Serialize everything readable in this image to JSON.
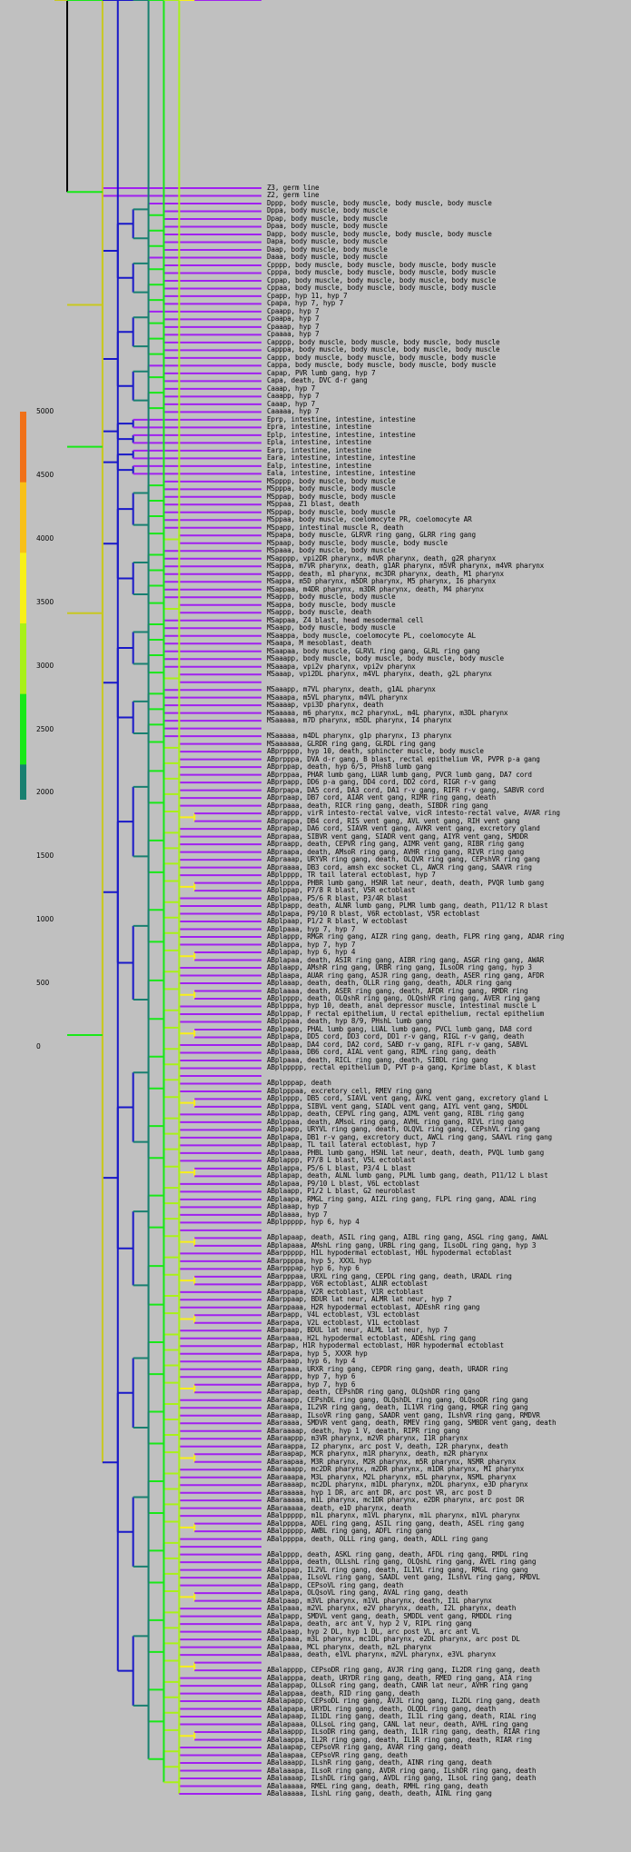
{
  "legend": {
    "ticks": [
      "5000",
      "4500",
      "4000",
      "3500",
      "3000",
      "2500",
      "2000",
      "1500",
      "1000",
      "500",
      "0"
    ],
    "colors": [
      "#f07018",
      "#f8c018",
      "#f8f018",
      "#a8f018",
      "#18e818",
      "#188070",
      "#1818f0",
      "#7818f0",
      "#c018f0"
    ]
  },
  "leaves": [
    "Z3, germ line",
    "Z2, germ line",
    "Dppp, body muscle, body muscle, body muscle, body muscle",
    "Dppa, body muscle, body muscle",
    "Dpap, body muscle, body muscle",
    "Dpaa, body muscle, body muscle",
    "Dapp, body muscle, body muscle, body muscle, body muscle",
    "Dapa, body muscle, body muscle",
    "Daap, body muscle, body muscle",
    "Daaa, body muscle, body muscle",
    "Cpppp, body muscle, body muscle, body muscle, body muscle",
    "Cpppa, body muscle, body muscle, body muscle, body muscle",
    "Cppap, body muscle, body muscle, body muscle, body muscle",
    "Cppaa, body muscle, body muscle, body muscle, body muscle",
    "Cpapp, hyp 11, hyp 7",
    "Cpapa, hyp 7, hyp 7",
    "Cpaapp, hyp 7",
    "Cpaapa, hyp 7",
    "Cpaaap, hyp 7",
    "Cpaaaa, hyp 7",
    "Capppp, body muscle, body muscle, body muscle, body muscle",
    "Capppa, body muscle, body muscle, body muscle, body muscle",
    "Cappp, body muscle, body muscle, body muscle, body muscle",
    "Cappa, body muscle, body muscle, body muscle, body muscle",
    "Capap, PVR lumb gang, hyp 7",
    "Capa, death, DVC d-r gang",
    "Caaap, hyp 7",
    "Caaapp, hyp 7",
    "Caaap, hyp 7",
    "Caaaaa, hyp 7",
    "Eprp, intestine, intestine, intestine",
    "Epra, intestine, intestine",
    "Eplp, intestine, intestine, intestine",
    "Epla, intestine, intestine",
    "Earp, intestine, intestine",
    "Eara, intestine, intestine, intestine",
    "Ealp, intestine, intestine",
    "Eala, intestine, intestine, intestine",
    "MSpppp, body muscle, body muscle",
    "MSpppa, body muscle, body muscle",
    "MSppap, body muscle, body muscle",
    "MSppaa, Z1 blast, death",
    "MSppap, body muscle, body muscle",
    "MSppaa, body muscle, coelomocyte PR, coelomocyte AR",
    "MSpapp, intestinal muscle R, death",
    "MSpapa, body muscle, GLRVR ring gang, GLRR ring gang",
    "MSpaap, body muscle, body muscle, body muscle",
    "MSpaaa, body muscle, body muscle",
    "MSapppp, vpi2DR pharynx, m4VR pharynx, death, g2R pharynx",
    "MSappa, m7VR pharynx, death, g1AR pharynx, m5VR pharynx, m4VR pharynx",
    "MSappp, death, m1 pharynx, mc3DR pharynx, death, M1 pharynx",
    "MSappa, m5D pharynx, m5DR pharynx, M5 pharynx, I6 pharynx",
    "MSappaa, m4DR pharynx, m3DR pharynx, death, M4 pharynx",
    "MSappp, body muscle, body muscle",
    "MSappa, body muscle, body muscle",
    "MSappp, body muscle, death",
    "MSappaa, Z4 blast, head mesodermal cell",
    "MSaapp, body muscle, body muscle",
    "MSaappa, body muscle, coelomocyte PL, coelomocyte AL",
    "MSaapa, M mesoblast, death",
    "MSaapaa, body muscle, GLRVL ring gang, GLRL ring gang",
    "MSaaapp, body muscle, body muscle, body muscle, body muscle",
    "MSaaapa, vpi2v pharynx, vpi2v pharynx",
    "MSaaap, vpi2DL pharynx, m4VL pharynx, death, g2L pharynx",
    "",
    "MSaaapp, m7VL pharynx, death, g1AL pharynx",
    "MSaaapa, m5VL pharynx, m4VL pharynx",
    "MSaaaap, vpi3D pharynx, death",
    "MSaaaaa, m6 pharynx, mc2 pharynxL, m4L pharynx, m3DL pharynx",
    "MSaaaaa, m7D pharynx, m5DL pharynx, I4 pharynx",
    "",
    "MSaaaaa, m4DL pharynx, g1p pharynx, I3 pharynx",
    "MSaaaaaa, GLRDR ring gang, GLRDL ring gang",
    "ABprpppp, hyp 10, death, sphincter muscle, body muscle",
    "ABprpppa, DVA d-r gang, B blast, rectal epithelium VR, PVPR p-a gang",
    "ABprppap, death, hyp 6/5, PHsh8 lumb gang",
    "ABprppaa, PHAR lumb gang, LUAR lumb gang, PVCR lumb gang, DA7 cord",
    "ABprpapp, DD6 p-a gang, DD4 cord, DD2 cord, RIGR r-v gang",
    "ABprpapa, DA5 cord, DA3 cord, DA1 r-v gang, RIFR r-v gang, SABVR cord",
    "ABprpaap, DB7 cord, AIAR vent gang, RIMR ring gang, death",
    "ABprpaaa, death, RICR ring gang, death, SIBDR ring gang",
    "ABprappp, virR intesto-rectal valve, vicR intesto-rectal valve, AVAR ring",
    "ABprappa, DB4 cord, RIS vent gang, AVL vent gang, RIH vent gang",
    "ABprapap, DA6 cord, SIAVR vent gang, AVKR vent gang, excretory gland",
    "ABprapaa, SIBVR vent gang, SIADR vent gang, AIYR vent gang, SMDDR",
    "ABpraapp, death, CEPVR ring gang, AIMR vent gang, RIBR ring gang",
    "ABpraapa, death, AMsoR ring gang, AVHR ring gang, RIVR ring gang",
    "ABpraaap, URYVR ring gang, death, OLQVR ring gang, CEPshVR ring gang",
    "ABpraaaa, DB3 cord, amsh exc socket CL, AWCR ring gang, SAAVR ring",
    "ABplpppp, TR tail lateral ectoblast, hyp 7",
    "ABplpppa, PHBR lumb gang, HSNR lat neur, death, death, PVQR lumb gang",
    "ABplppap, P7/8 R blast, V5R ectoblast",
    "ABplppaa, P5/6 R blast, P3/4R blast",
    "ABplpapp, death, ALNR lumb gang, PLMR lumb gang, death, P11/12 R blast",
    "ABplpapa, P9/10 R blast, V6R ectoblast, V5R ectoblast",
    "ABplpaap, P1/2 R blast, W ectoblast",
    "ABplpaaa, hyp 7, hyp 7",
    "ABplappp, RMGR ring gang, AIZR ring gang, death, FLPR ring gang, ADAR ring",
    "ABplappa, hyp 7, hyp 7",
    "ABplapap, hyp 6, hyp 4",
    "ABplapaa, death, ASIR ring gang, AIBR ring gang, ASGR ring gang, AWAR",
    "ABplaapp, AMshR ring gang, URBR ring gang, ILsoDR ring gang, hyp 3",
    "ABplaapa, AUAR ring gang, ASJR ring gang, death, ASER ring gang, AFDR",
    "ABplaaap, death, death, OLLR ring gang, death, ADLR ring gang",
    "ABplaaaa, death, ASER ring gang, death, AFDR ring gang, RMDR ring",
    "ABplpppp, death, OLQshR ring gang, OLQshVR ring gang, AVER ring gang",
    "ABplpppa, hyp 10, death, anal depressor muscle, intestinal muscle L",
    "ABplppap, F rectal epithelium, U rectal epithelium, rectal epithelium",
    "ABplppaa, death, hyp 8/9, PHshL lumb gang",
    "ABplpapp, PHAL lumb gang, LUAL lumb gang, PVCL lumb gang, DA8 cord",
    "ABplpapa, DD5 cord, DD3 cord, DD1 r-v gang, RIGL r-v gang, death",
    "ABplpaap, DA4 cord, DA2 cord, SABD r-v gang, RIFL r-v gang, SABVL",
    "ABplpaaa, DB6 cord, AIAL vent gang, RIML ring gang, death",
    "ABplpaaa, death, RICL ring gang, death, SIBDL ring gang",
    "ABplppppp, rectal epithelium D, PVT p-a gang, Kprime blast, K blast",
    "",
    "ABplpppap, death",
    "ABplpppaa, excretory cell, RMEV ring gang",
    "ABplpppp, DB5 cord, SIAVL vent gang, AVKL vent gang, excretory gland L",
    "ABplpppa, SIBVL vent gang, SIADL vent gang, AIYL vent gang, SMDDL",
    "ABplppap, death, CEPVL ring gang, AIML vent gang, RIBL ring gang",
    "ABplppaa, death, AMsoL ring gang, AVHL ring gang, RIVL ring gang",
    "ABplpapp, URYVL ring gang, death, OLQVL ring gang, CEPshVL ring gang",
    "ABplpapa, DB1 r-v gang, excretory duct, AWCL ring gang, SAAVL ring gang",
    "ABplpaap, TL tail lateral ectoblast, hyp 7",
    "ABplpaaa, PHBL lumb gang, HSNL lat neur, death, death, PVQL lumb gang",
    "ABplappp, P7/8 L blast, V5L ectoblast",
    "ABplappa, P5/6 L blast, P3/4 L blast",
    "ABplapap, death, ALNL lumb gang, PLML lumb gang, death, P11/12 L blast",
    "ABplapaa, P9/10 L blast, V6L ectoblast",
    "ABplaapp, P1/2 L blast, G2 neuroblast",
    "ABplaapa, RMGL ring gang, AIZL ring gang, FLPL ring gang, ADAL ring",
    "ABplaaap, hyp 7",
    "ABplaaaa, hyp 7",
    "ABplppppp, hyp 6, hyp 4",
    "",
    "ABplapaap, death, ASIL ring gang, AIBL ring gang, ASGL ring gang, AWAL",
    "ABplapaaa, AMshL ring gang, URBL ring gang, ILsoDL ring gang, hyp 3",
    "ABarppppp, H1L hypodermal ectoblast, H0L hypodermal ectoblast",
    "ABarppppa, hyp 5, XXXL hyp",
    "ABarpppap, hyp 6, hyp 6",
    "ABarpppaa, URXL ring gang, CEPDL ring gang, death, URADL ring",
    "ABarppapp, V6R ectoblast, ALNR ectoblast",
    "ABarppapa, V2R ectoblast, V1R ectoblast",
    "ABarppaap, BDUR lat neur, ALMR lat neur, hyp 7",
    "ABarppaaa, H2R hypodermal ectoblast, ADEshR ring gang",
    "ABarpapp, V4L ectoblast, V3L ectoblast",
    "ABarpapa, V2L ectoblast, V1L ectoblast",
    "ABarpaap, BDUL lat neur, ALML lat neur, hyp 7",
    "ABarpaaa, H2L hypodermal ectoblast, ADEshL ring gang",
    "ABarpap, H1R hypodermal ectoblast, H0R hypodermal ectoblast",
    "ABarpapa, hyp 5, XXXR hyp",
    "ABarpaap, hyp 6, hyp 4",
    "ABarpaaa, URXR ring gang, CEPDR ring gang, death, URADR ring",
    "ABarappp, hyp 7, hyp 6",
    "ABarappa, hyp 7, hyp 6",
    "ABarapap, death, CEPshDR ring gang, OLQshDR ring gang",
    "ABaraapp, CEPshDL ring gang, OLQshDL ring gang, OLQsoDR ring gang",
    "ABaraapa, IL2VR ring gang, death, IL1VR ring gang, RMGR ring gang",
    "ABaraaap, ILsoVR ring gang, SAADR vent gang, ILshVR ring gang, RMDVR",
    "ABaraaaa, SMDVR vent gang, death, RMEV ring gang, SMBDR vent gang, death",
    "ABaraaaap, death, hyp 1 V, death, RIPR ring gang",
    "ABaraappp, m3VR pharynx, m2VR pharynx, I1R pharynx",
    "ABaraappa, I2 pharynx, arc post V, death, I2R pharynx, death",
    "ABaraapap, MCR pharynx, m1R pharynx, death, m2R pharynx",
    "ABaraapaa, M3R pharynx, M2R pharynx, m5R pharynx, NSMR pharynx",
    "ABaraaapp, mc2DR pharynx, m2DR pharynx, m1DR pharynx, MI pharynx",
    "ABaraaapa, M3L pharynx, M2L pharynx, m5L pharynx, NSML pharynx",
    "ABaraaaap, mc2DL pharynx, m1DL pharynx, m2DL pharynx, e3D pharynx",
    "ABaraaaaa, hyp 1 DR, arc ant DR, arc post VR, arc post D",
    "ABaraaaaa, m1L pharynx, mc1DR pharynx, e2DR pharynx, arc post DR",
    "ABaraaaaa, death, e1D pharynx, death",
    "ABalppppp, m1L pharynx, m1VL pharynx, m1L pharynx, m1VL pharynx",
    "ABalppppa, ADEL ring gang, ASIL ring gang, death, ASEL ring gang",
    "ABalppppp, AWBL ring gang, ADFL ring gang",
    "ABalppppa, death, OLLL ring gang, death, ADLL ring gang",
    "",
    "ABalpppp, death, ASKL ring gang, death, AFDL ring gang, RMDL ring",
    "ABalpppa, death, OLLshL ring gang, OLQshL ring gang, AVEL ring gang",
    "ABalppap, IL2VL ring gang, death, IL1VL ring gang, RMGL ring gang",
    "ABalppaa, ILsoVL ring gang, SAADL vent gang, ILshVL ring gang, RMDVL",
    "ABalpapp, CEPsoVL ring gang, death",
    "ABalpapa, OLQsoVL ring gang, AVAL ring gang, death",
    "ABalpaap, m3VL pharynx, m1VL pharynx, death, I1L pharynx",
    "ABalpaaa, m2VL pharynx, e2V pharynx, death, I2L pharynx, death",
    "ABalpapp, SMDVL vent gang, death, SMDDL vent gang, RMDDL ring",
    "ABalpapa, death, arc ant V, hyp 2 V, RIPL ring gang",
    "ABalpaap, hyp 2 DL, hyp 1 DL, arc post VL, arc ant VL",
    "ABalpaaa, m3L pharynx, mc1DL pharynx, e2DL pharynx, arc post DL",
    "ABalpaaa, MCL pharynx, death, m2L pharynx",
    "ABalpaaa, death, e1VL pharynx, m2VL pharynx, e3VL pharynx",
    "",
    "ABalapppp, CEPsoDR ring gang, AVJR ring gang, IL2DR ring gang, death",
    "ABalapppa, death, URYDR ring gang, death, RMED ring gang, AIA ring",
    "ABalappap, OLLsoR ring gang, death, CANR lat neur, AVHR ring gang",
    "ABalappaa, death, RID ring gang, death",
    "ABalapapp, CEPsoDL ring gang, AVJL ring gang, IL2DL ring gang, death",
    "ABalapapa, URYDL ring gang, death, OLQDL ring gang, death",
    "ABalapaap, IL1DL ring gang, death, IL1L ring gang, death, RIAL ring",
    "ABalapaaa, OLLsoL ring gang, CANL lat neur, death, AVHL ring gang",
    "ABalaappp, ILsoDR ring gang, death, IL1R ring gang, death, RIAR ring",
    "ABalaappa, IL2R ring gang, death, IL1R ring gang, death, RIAR ring",
    "ABalaapap, CEPsoVR ring gang, AVAR ring gang, death",
    "ABalaapaa, CEPsoVR ring gang, death",
    "ABalaaapp, ILshR ring gang, death, AINR ring gang, death",
    "ABalaaapa, ILsoR ring gang, AVDR ring gang, ILshDR ring gang, death",
    "ABalaaaap, ILshDL ring gang, AVDL ring gang, ILsoL ring gang, death",
    "ABalaaaaa, RMEL ring gang, death, RMHL ring gang, death",
    "ABalaaaaa, ILshL ring gang, death, death, AINL ring gang"
  ]
}
